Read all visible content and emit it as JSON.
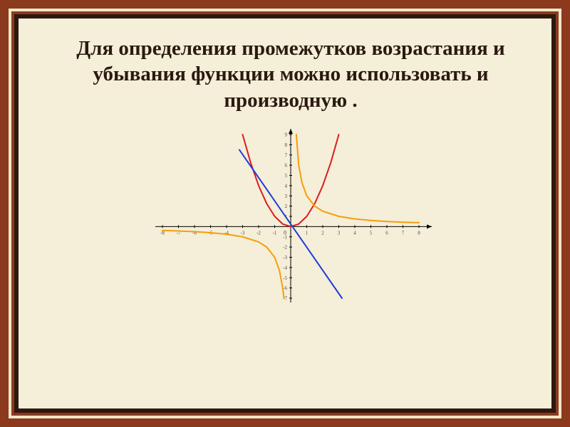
{
  "title": "Для определения промежутков возрастания и убывания функции можно использовать  и производную .",
  "title_fontsize": 29,
  "background_color": "#f5eed8",
  "frame_outer_color": "#8b3a1e",
  "frame_accent_color": "#f5e6c8",
  "frame_inner_color": "#2d1810",
  "pin_count": 7,
  "pin_color": "#3d2b1f",
  "pin_highlight": "#b08b60",
  "chart": {
    "type": "multi-line",
    "xlim": [
      -8,
      8
    ],
    "ylim": [
      -7,
      9
    ],
    "xtick_step": 1,
    "ytick_step": 1,
    "axis_color": "#000000",
    "series": [
      {
        "name": "parabola",
        "color": "#d81e1e",
        "width": 2,
        "points": [
          [
            -3,
            9
          ],
          [
            -2.5,
            6.25
          ],
          [
            -2,
            4
          ],
          [
            -1.5,
            2.25
          ],
          [
            -1,
            1
          ],
          [
            -0.5,
            0.25
          ],
          [
            0,
            0
          ],
          [
            0.5,
            0.25
          ],
          [
            1,
            1
          ],
          [
            1.5,
            2.25
          ],
          [
            2,
            4
          ],
          [
            2.5,
            6.25
          ],
          [
            3,
            9
          ]
        ]
      },
      {
        "name": "line",
        "color": "#1e3cd8",
        "width": 2,
        "points": [
          [
            -3.2,
            7.5
          ],
          [
            3.2,
            -7
          ]
        ]
      },
      {
        "name": "hyperbola-right",
        "color": "#f59e0b",
        "width": 2,
        "points": [
          [
            0.35,
            9
          ],
          [
            0.5,
            6
          ],
          [
            0.7,
            4.3
          ],
          [
            1,
            3
          ],
          [
            1.5,
            2
          ],
          [
            2,
            1.5
          ],
          [
            3,
            1
          ],
          [
            4,
            0.75
          ],
          [
            5,
            0.6
          ],
          [
            6,
            0.5
          ],
          [
            7,
            0.43
          ],
          [
            8,
            0.38
          ]
        ]
      },
      {
        "name": "hyperbola-left",
        "color": "#f59e0b",
        "width": 2,
        "points": [
          [
            -8,
            -0.38
          ],
          [
            -7,
            -0.43
          ],
          [
            -6,
            -0.5
          ],
          [
            -5,
            -0.6
          ],
          [
            -4,
            -0.75
          ],
          [
            -3,
            -1
          ],
          [
            -2,
            -1.5
          ],
          [
            -1.5,
            -2
          ],
          [
            -1,
            -3
          ],
          [
            -0.7,
            -4.3
          ],
          [
            -0.5,
            -6
          ],
          [
            -0.42,
            -7
          ]
        ]
      }
    ]
  }
}
